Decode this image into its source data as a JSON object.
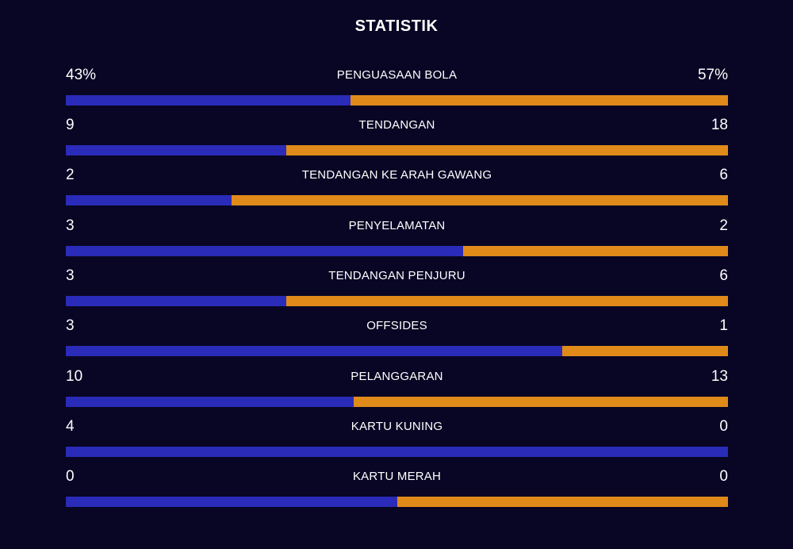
{
  "title": "STATISTIK",
  "colors": {
    "background": "#080624",
    "home": "#2a2bb8",
    "away": "#e08a1a",
    "text": "#ffffff"
  },
  "stats": [
    {
      "label": "PENGUASAAN BOLA",
      "home": "43%",
      "away": "57%",
      "home_share": 0.43
    },
    {
      "label": "TENDANGAN",
      "home": "9",
      "away": "18",
      "home_share": 0.333
    },
    {
      "label": "TENDANGAN KE ARAH GAWANG",
      "home": "2",
      "away": "6",
      "home_share": 0.25
    },
    {
      "label": "PENYELAMATAN",
      "home": "3",
      "away": "2",
      "home_share": 0.6
    },
    {
      "label": "TENDANGAN PENJURU",
      "home": "3",
      "away": "6",
      "home_share": 0.333
    },
    {
      "label": "OFFSIDES",
      "home": "3",
      "away": "1",
      "home_share": 0.75
    },
    {
      "label": "PELANGGARAN",
      "home": "10",
      "away": "13",
      "home_share": 0.435
    },
    {
      "label": "KARTU KUNING",
      "home": "4",
      "away": "0",
      "home_share": 1.0
    },
    {
      "label": "KARTU MERAH",
      "home": "0",
      "away": "0",
      "home_share": 0.5
    }
  ]
}
